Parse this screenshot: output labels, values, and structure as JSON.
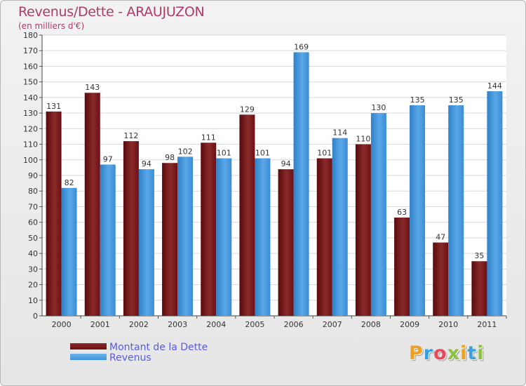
{
  "colors": {
    "dette": "#6b0f13",
    "revenus": "#3f93d9",
    "title": "#b03a6a",
    "legend_text": "#5a5ae6"
  },
  "chart_data": {
    "type": "bar",
    "title": "Revenus/Dette - ARAUJUZON",
    "subtitle": "(en milliers d'€)",
    "categories": [
      "2000",
      "2001",
      "2002",
      "2003",
      "2004",
      "2005",
      "2006",
      "2007",
      "2008",
      "2009",
      "2010",
      "2011"
    ],
    "series": [
      {
        "name": "Montant de la Dette",
        "values": [
          131,
          143,
          112,
          98,
          111,
          129,
          94,
          101,
          110,
          63,
          47,
          35
        ]
      },
      {
        "name": "Revenus",
        "values": [
          82,
          97,
          94,
          102,
          101,
          101,
          169,
          114,
          130,
          135,
          135,
          144
        ]
      }
    ],
    "ylim": [
      0,
      180
    ],
    "yticks": [
      0,
      10,
      20,
      30,
      40,
      50,
      60,
      70,
      80,
      90,
      100,
      110,
      120,
      130,
      140,
      150,
      160,
      170,
      180
    ],
    "grid": true,
    "legend_position": "bottom-left",
    "data_labels": true
  },
  "logo": {
    "letters": [
      "P",
      "r",
      "o",
      "x",
      "i",
      "t",
      "i"
    ],
    "colors": [
      "#f0a020",
      "#3aa0e0",
      "#e84a5a",
      "#8cc23e",
      "#f0a020",
      "#3aa0e0",
      "#8cc23e"
    ]
  }
}
